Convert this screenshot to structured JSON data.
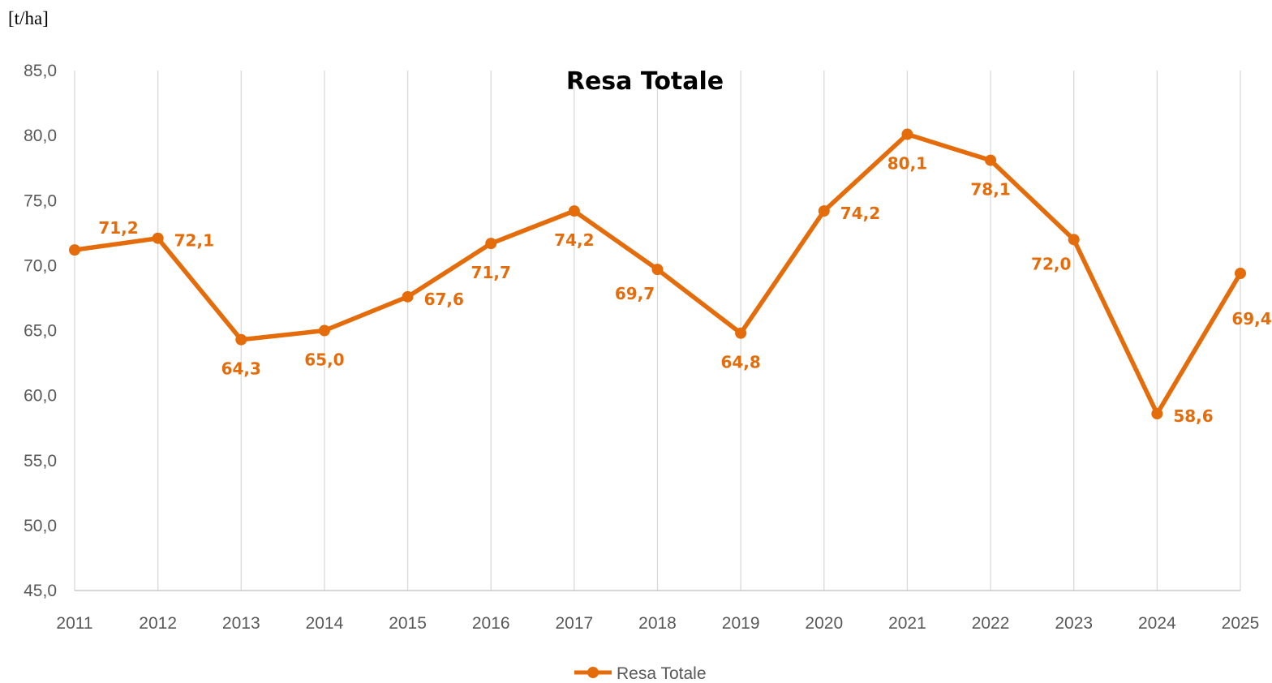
{
  "chart_data": {
    "type": "line",
    "title": "Resa Totale",
    "unit_label": "[t/ha]",
    "x": [
      "2011",
      "2012",
      "2013",
      "2014",
      "2015",
      "2016",
      "2017",
      "2018",
      "2019",
      "2020",
      "2021",
      "2022",
      "2023",
      "2024",
      "2025"
    ],
    "series": [
      {
        "name": "Resa Totale",
        "values": [
          71.2,
          72.1,
          64.3,
          65.0,
          67.6,
          71.7,
          74.2,
          69.7,
          64.8,
          74.2,
          80.1,
          78.1,
          72.0,
          58.6,
          69.4
        ],
        "labels": [
          "71,2",
          "72,1",
          "64,3",
          "65,0",
          "67,6",
          "71,7",
          "74,2",
          "69,7",
          "64,8",
          "74,2",
          "80,1",
          "78,1",
          "72,0",
          "58,6",
          "69,4"
        ],
        "color": "#E46C0A"
      }
    ],
    "ylim": [
      45,
      85
    ],
    "yticks": [
      45,
      50,
      55,
      60,
      65,
      70,
      75,
      80,
      85
    ],
    "ytick_labels": [
      "45,0",
      "50,0",
      "55,0",
      "60,0",
      "65,0",
      "70,0",
      "75,0",
      "80,0",
      "85,0"
    ],
    "grid": "vertical",
    "legend": "bottom-center"
  }
}
